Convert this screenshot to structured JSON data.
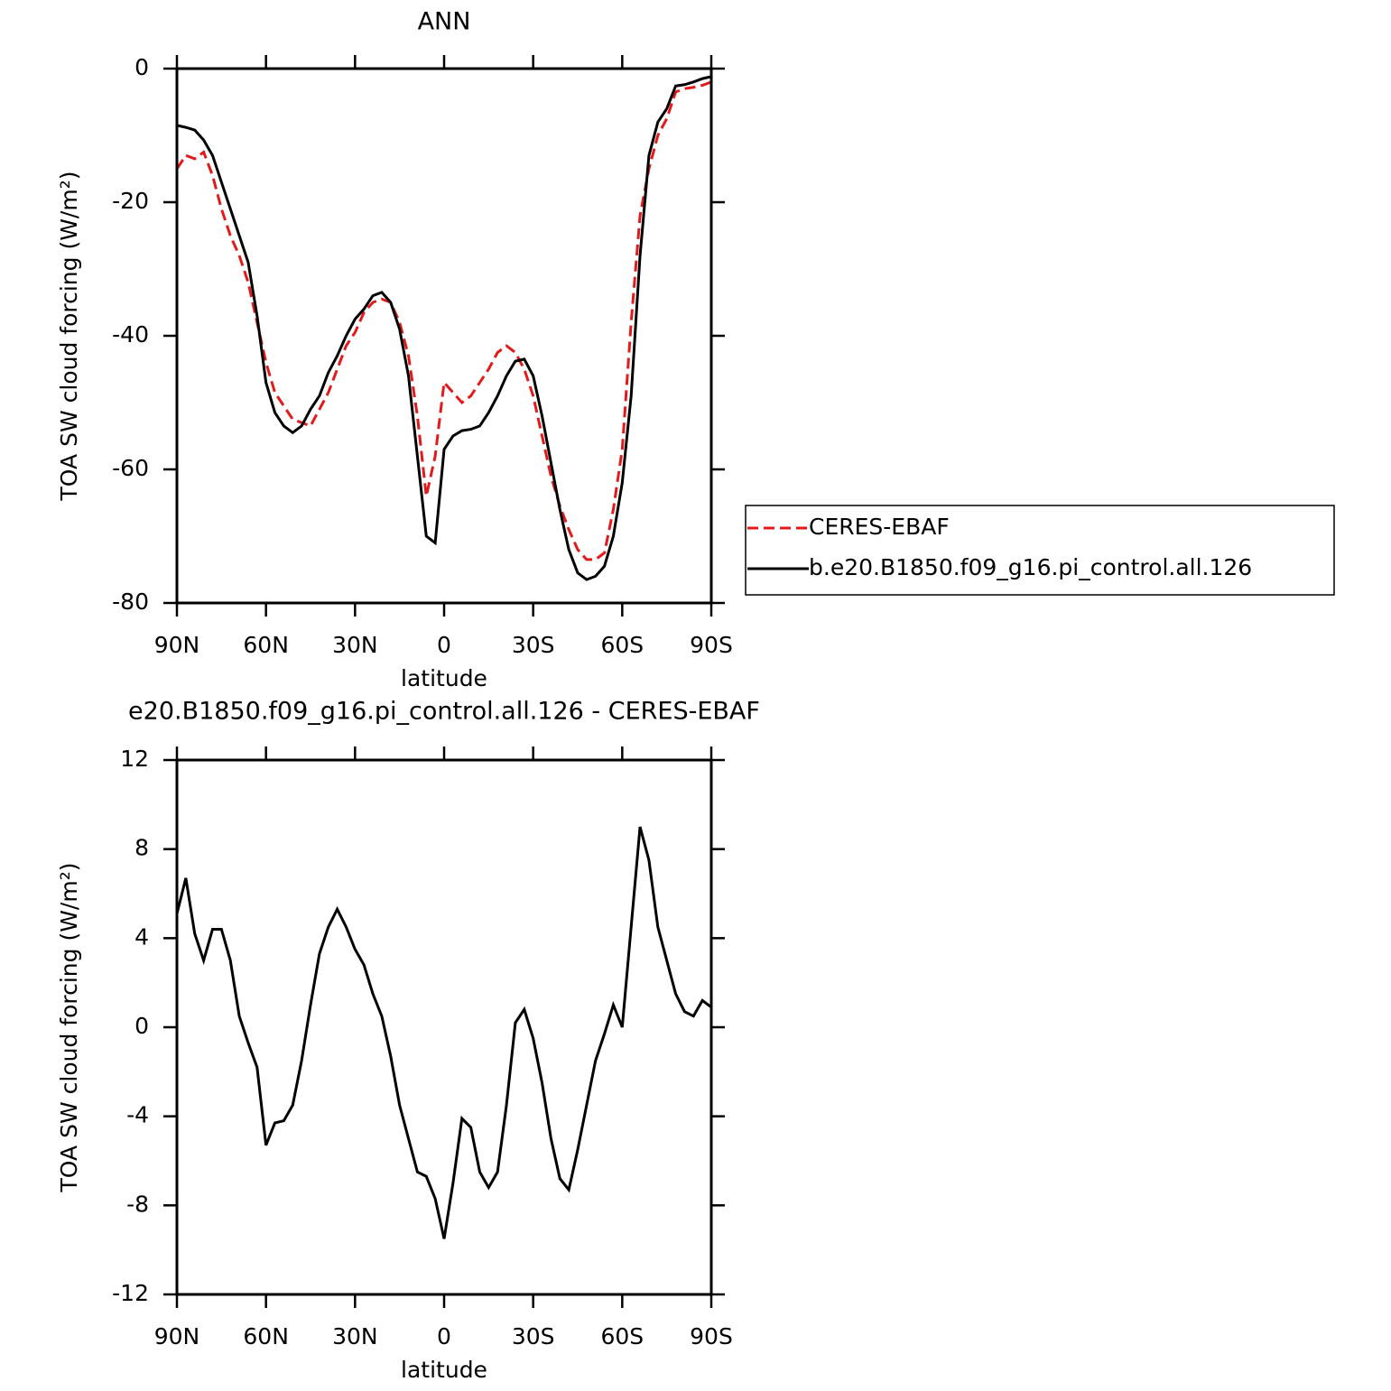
{
  "chart_data": [
    {
      "type": "line",
      "title": "ANN",
      "xlabel": "latitude",
      "ylabel": "TOA SW cloud forcing (W/m²)",
      "xlim": [
        90,
        -90
      ],
      "ylim": [
        -80,
        0
      ],
      "xticks": [
        {
          "value": 90,
          "label": "90N"
        },
        {
          "value": 60,
          "label": "60N"
        },
        {
          "value": 30,
          "label": "30N"
        },
        0,
        {
          "value": -30,
          "label": "30S"
        },
        {
          "value": -60,
          "label": "60S"
        },
        {
          "value": -90,
          "label": "90S"
        }
      ],
      "yticks": [
        -80,
        -60,
        -40,
        -20,
        0
      ],
      "legend": "right",
      "x": [
        90,
        87,
        84,
        81,
        78,
        75,
        72,
        69,
        66,
        63,
        60,
        57,
        54,
        51,
        48,
        45,
        42,
        39,
        36,
        33,
        30,
        27,
        24,
        21,
        18,
        15,
        12,
        9,
        6,
        3,
        0,
        -3,
        -6,
        -9,
        -12,
        -15,
        -18,
        -21,
        -24,
        -27,
        -30,
        -33,
        -36,
        -39,
        -42,
        -45,
        -48,
        -51,
        -54,
        -57,
        -60,
        -63,
        -66,
        -69,
        -72,
        -75,
        -78,
        -81,
        -84,
        -87,
        -90
      ],
      "series": [
        {
          "name": "CERES-EBAF",
          "color": "#e31a1c",
          "linestyle": "dashed",
          "values": [
            -15,
            -13,
            -13.5,
            -12.5,
            -16,
            -21,
            -25,
            -28,
            -32,
            -38,
            -44,
            -48.5,
            -50.5,
            -52.5,
            -53,
            -53.5,
            -51,
            -48.5,
            -45,
            -41.5,
            -39.5,
            -36.5,
            -35,
            -34.5,
            -35,
            -38,
            -43,
            -52,
            -64,
            -58,
            -47,
            -48.5,
            -50,
            -49,
            -47,
            -45,
            -42.5,
            -41.5,
            -42.5,
            -45,
            -49,
            -55,
            -61,
            -65.5,
            -69,
            -72,
            -73.5,
            -73.5,
            -72.5,
            -66,
            -57,
            -38,
            -22,
            -15,
            -10,
            -7.5,
            -3.5,
            -3,
            -2.8,
            -2.5,
            -2
          ]
        },
        {
          "name": "b.e20.B1850.f09_g16.pi_control.all.126",
          "color": "#000000",
          "linestyle": "solid",
          "values": [
            -8.5,
            -8.8,
            -9.2,
            -10.7,
            -13,
            -17,
            -21,
            -25,
            -29,
            -37,
            -47,
            -51.5,
            -53.5,
            -54.5,
            -53.5,
            -51,
            -49,
            -45.5,
            -43,
            -40,
            -37.5,
            -36,
            -34,
            -33.5,
            -35,
            -39,
            -46,
            -58,
            -70,
            -71,
            -57,
            -55,
            -54.2,
            -54,
            -53.5,
            -51.5,
            -49,
            -46,
            -43.8,
            -43.5,
            -46,
            -52,
            -59,
            -66,
            -72,
            -75.5,
            -76.5,
            -76,
            -74.5,
            -70,
            -62,
            -49,
            -28,
            -13,
            -8,
            -6,
            -2.6,
            -2.4,
            -2,
            -1.5,
            -1.2
          ]
        }
      ]
    },
    {
      "type": "line",
      "title": "e20.B1850.f09_g16.pi_control.all.126 - CERES-EBAF",
      "xlabel": "latitude",
      "ylabel": "TOA SW cloud forcing (W/m²)",
      "xlim": [
        90,
        -90
      ],
      "ylim": [
        -12,
        12
      ],
      "xticks": [
        {
          "value": 90,
          "label": "90N"
        },
        {
          "value": 60,
          "label": "60N"
        },
        {
          "value": 30,
          "label": "30N"
        },
        0,
        {
          "value": -30,
          "label": "30S"
        },
        {
          "value": -60,
          "label": "60S"
        },
        {
          "value": -90,
          "label": "90S"
        }
      ],
      "yticks": [
        -12,
        -8,
        -4,
        0,
        4,
        8,
        12
      ],
      "x": [
        90,
        87,
        84,
        81,
        78,
        75,
        72,
        69,
        66,
        63,
        60,
        57,
        54,
        51,
        48,
        45,
        42,
        39,
        36,
        33,
        30,
        27,
        24,
        21,
        18,
        15,
        12,
        9,
        6,
        3,
        0,
        -3,
        -6,
        -9,
        -12,
        -15,
        -18,
        -21,
        -24,
        -27,
        -30,
        -33,
        -36,
        -39,
        -42,
        -45,
        -48,
        -51,
        -54,
        -57,
        -60,
        -63,
        -66,
        -69,
        -72,
        -75,
        -78,
        -81,
        -84,
        -87,
        -90
      ],
      "color": "#000000",
      "values": [
        5.1,
        6.7,
        4.2,
        3.0,
        4.4,
        4.4,
        3.0,
        0.5,
        -0.7,
        -1.8,
        -5.3,
        -4.3,
        -4.2,
        -3.5,
        -1.5,
        1.0,
        3.3,
        4.5,
        5.3,
        4.5,
        3.5,
        2.8,
        1.5,
        0.5,
        -1.3,
        -3.5,
        -5.0,
        -6.5,
        -6.7,
        -7.7,
        -9.5,
        -7.0,
        -4.1,
        -4.5,
        -6.5,
        -7.2,
        -6.5,
        -3.5,
        0.2,
        0.8,
        -0.5,
        -2.5,
        -5.0,
        -6.8,
        -7.3,
        -5.5,
        -3.5,
        -1.5,
        -0.3,
        1.0,
        0.0,
        4.5,
        9.0,
        7.5,
        4.5,
        3.0,
        1.5,
        0.7,
        0.5,
        1.2,
        0.9
      ]
    }
  ]
}
